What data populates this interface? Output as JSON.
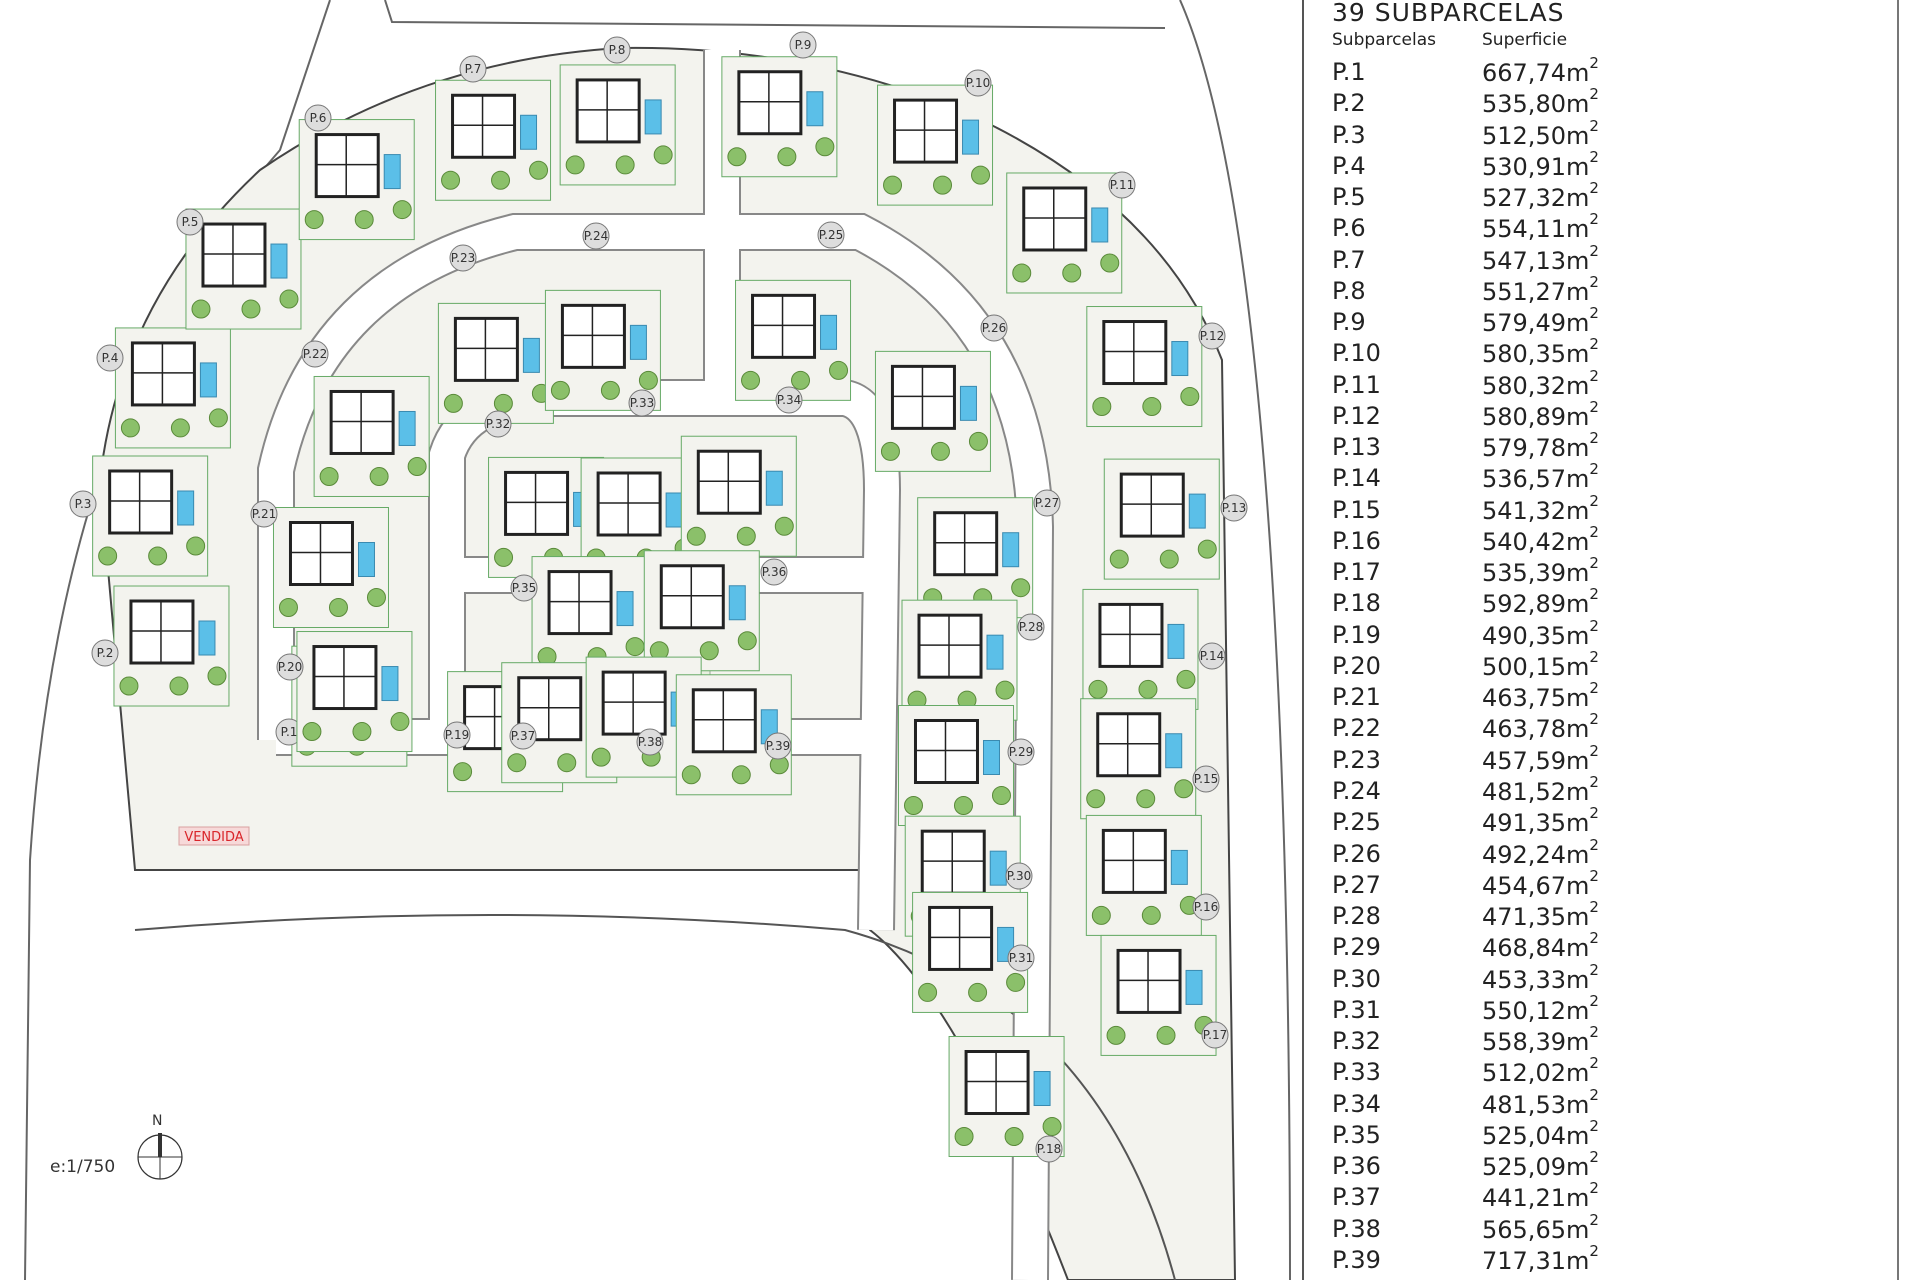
{
  "table": {
    "title": "39 SUBPARCELAS",
    "col_lot": "Subparcelas",
    "col_area": "Superficie",
    "unit": "m",
    "unit_exp": "2",
    "rows": [
      {
        "id": "P.1",
        "area": "667,74"
      },
      {
        "id": "P.2",
        "area": "535,80"
      },
      {
        "id": "P.3",
        "area": "512,50"
      },
      {
        "id": "P.4",
        "area": "530,91"
      },
      {
        "id": "P.5",
        "area": "527,32"
      },
      {
        "id": "P.6",
        "area": "554,11"
      },
      {
        "id": "P.7",
        "area": "547,13"
      },
      {
        "id": "P.8",
        "area": "551,27"
      },
      {
        "id": "P.9",
        "area": "579,49"
      },
      {
        "id": "P.10",
        "area": "580,35"
      },
      {
        "id": "P.11",
        "area": "580,32"
      },
      {
        "id": "P.12",
        "area": "580,89"
      },
      {
        "id": "P.13",
        "area": "579,78"
      },
      {
        "id": "P.14",
        "area": "536,57"
      },
      {
        "id": "P.15",
        "area": "541,32"
      },
      {
        "id": "P.16",
        "area": "540,42"
      },
      {
        "id": "P.17",
        "area": "535,39"
      },
      {
        "id": "P.18",
        "area": "592,89"
      },
      {
        "id": "P.19",
        "area": "490,35"
      },
      {
        "id": "P.20",
        "area": "500,15"
      },
      {
        "id": "P.21",
        "area": "463,75"
      },
      {
        "id": "P.22",
        "area": "463,78"
      },
      {
        "id": "P.23",
        "area": "457,59"
      },
      {
        "id": "P.24",
        "area": "481,52"
      },
      {
        "id": "P.25",
        "area": "491,35"
      },
      {
        "id": "P.26",
        "area": "492,24"
      },
      {
        "id": "P.27",
        "area": "454,67"
      },
      {
        "id": "P.28",
        "area": "471,35"
      },
      {
        "id": "P.29",
        "area": "468,84"
      },
      {
        "id": "P.30",
        "area": "453,33"
      },
      {
        "id": "P.31",
        "area": "550,12"
      },
      {
        "id": "P.32",
        "area": "558,39"
      },
      {
        "id": "P.33",
        "area": "512,02"
      },
      {
        "id": "P.34",
        "area": "481,53"
      },
      {
        "id": "P.35",
        "area": "525,04"
      },
      {
        "id": "P.36",
        "area": "525,09"
      },
      {
        "id": "P.37",
        "area": "441,21"
      },
      {
        "id": "P.38",
        "area": "565,65"
      },
      {
        "id": "P.39",
        "area": "717,31"
      }
    ]
  },
  "map": {
    "sold_label": "VENDIDA",
    "sold_lot": "P.1",
    "scale": "e:1/750",
    "north": "N",
    "colors": {
      "pool": "#5bbfe8",
      "tree": "#7a9a3a",
      "sold": "#d9252a",
      "plot": "#f3f3ee"
    }
  }
}
